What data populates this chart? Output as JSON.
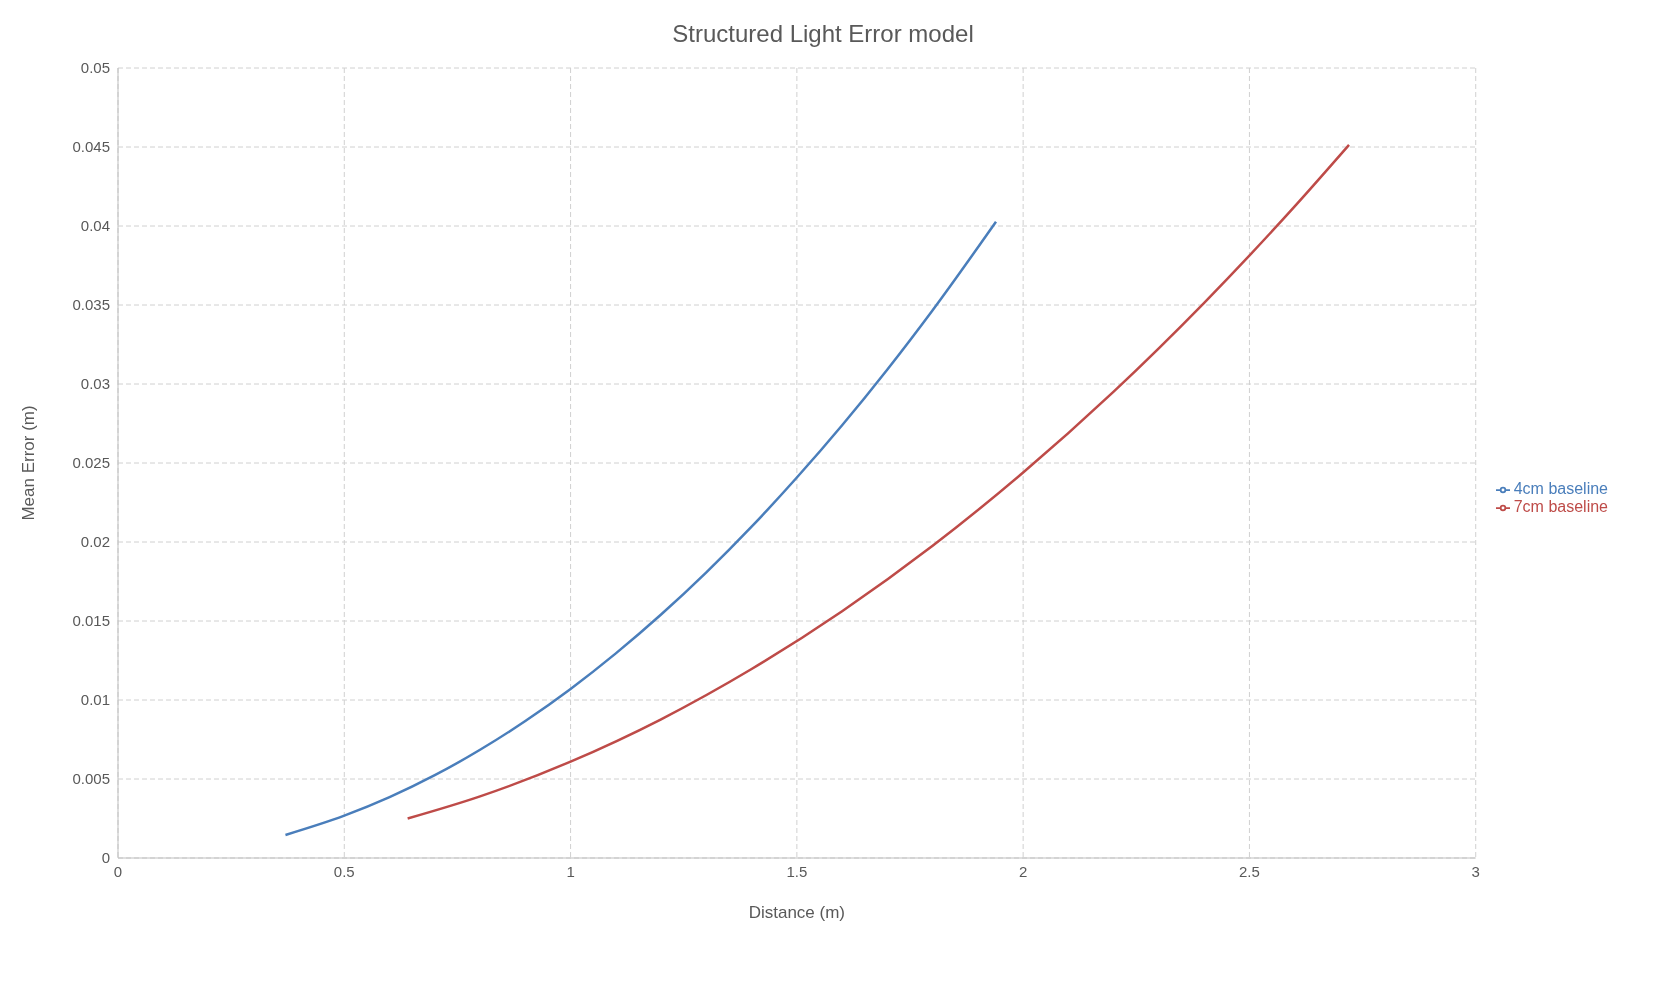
{
  "chart_data": {
    "type": "line",
    "title": "Structured Light Error model",
    "xlabel": "Distance (m)",
    "ylabel": "Mean Error (m)",
    "xlim": [
      0,
      3
    ],
    "xticks": [
      0,
      0.5,
      1,
      1.5,
      2,
      2.5,
      3
    ],
    "ylim": [
      0,
      0.05
    ],
    "yticks": [
      0,
      0.005,
      0.01,
      0.015,
      0.02,
      0.025,
      0.03,
      0.035,
      0.04,
      0.045,
      0.05
    ],
    "grid": true,
    "legend": "right",
    "marker": "none",
    "line_style": "solid",
    "series": [
      {
        "name": "4cm baseline",
        "color": "#4a7ebb",
        "x": [
          0.37,
          0.5,
          0.6,
          0.7,
          0.8,
          0.9,
          1.0,
          1.1,
          1.2,
          1.3,
          1.4,
          1.5,
          1.6,
          1.7,
          1.8,
          1.94
        ],
        "values": [
          0.00146,
          0.00268,
          0.00385,
          0.00524,
          0.00685,
          0.00867,
          0.0107,
          0.01295,
          0.01541,
          0.01808,
          0.02097,
          0.02408,
          0.02739,
          0.03092,
          0.03467,
          0.04027
        ]
      },
      {
        "name": "7cm baseline",
        "color": "#be4b48",
        "x": [
          0.64,
          0.8,
          1.0,
          1.2,
          1.4,
          1.6,
          1.8,
          2.0,
          2.2,
          2.4,
          2.6,
          2.72
        ],
        "values": [
          0.0025,
          0.0039,
          0.0061,
          0.00878,
          0.01196,
          0.01562,
          0.01976,
          0.0244,
          0.02952,
          0.03514,
          0.04124,
          0.04513
        ]
      }
    ]
  }
}
